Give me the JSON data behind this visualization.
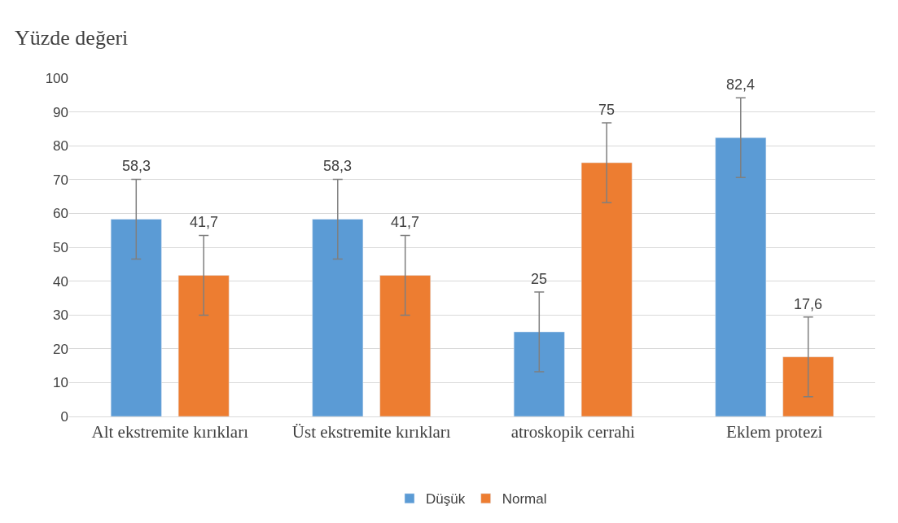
{
  "chart_data": {
    "type": "bar",
    "ylabel": "Yüzde değeri",
    "categories": [
      "Alt ekstremite kırıkları",
      "Üst ekstremite kırıkları",
      "atroskopik cerrahi",
      "Eklem protezi"
    ],
    "series": [
      {
        "name": "Düşük",
        "color": "#5b9bd5",
        "values": [
          58.3,
          58.3,
          25,
          82.4
        ],
        "value_labels": [
          "58,3",
          "58,3",
          "25",
          "82,4"
        ],
        "errors": [
          11.8,
          11.8,
          11.8,
          11.8
        ]
      },
      {
        "name": "Normal",
        "color": "#ed7d31",
        "values": [
          41.7,
          41.7,
          75,
          17.6
        ],
        "value_labels": [
          "41,7",
          "41,7",
          "75",
          "17,6"
        ],
        "errors": [
          11.8,
          11.8,
          11.8,
          11.8
        ]
      }
    ],
    "ylim": [
      0,
      100
    ],
    "yticks": [
      0,
      10,
      20,
      30,
      40,
      50,
      60,
      70,
      80,
      90,
      100
    ],
    "grid": "y",
    "legend": "bottom"
  }
}
